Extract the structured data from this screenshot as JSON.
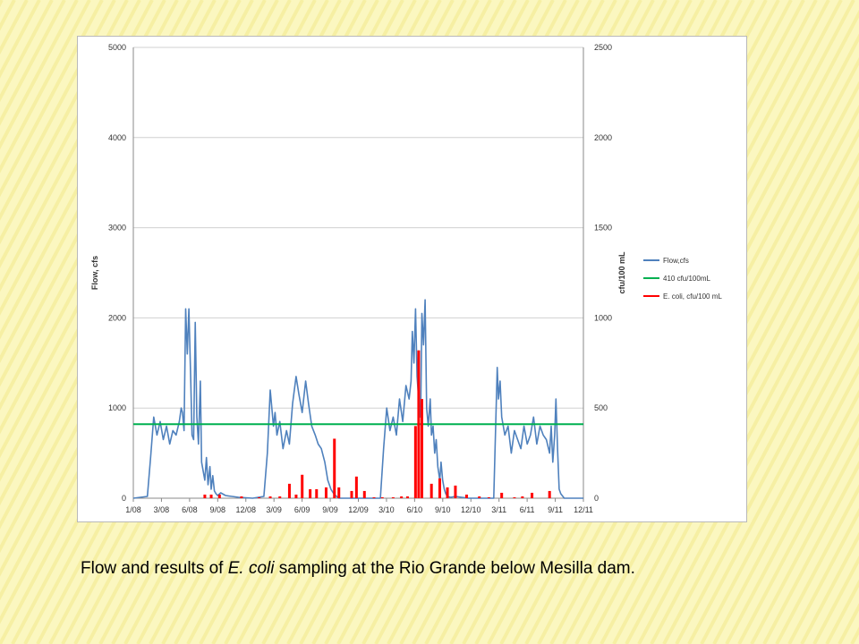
{
  "colors": {
    "background": "#fbf7c0",
    "stripe": "#f2e98c",
    "flow": "#4f81bd",
    "threshold": "#00b050",
    "ecoli": "#ff0000"
  },
  "caption": {
    "part1": "Flow and results of ",
    "italic": "E. coli",
    "part2": " sampling at the Rio Grande below Mesilla dam."
  },
  "chart_data": {
    "type": "line",
    "title": "",
    "xlabel": "",
    "ylabel": "Flow, cfs",
    "y2label": "cfu/100 mL",
    "ylim": [
      0,
      5000
    ],
    "y2lim": [
      0,
      2500
    ],
    "xlim": [
      "2008-01",
      "2011-12"
    ],
    "yticks": [
      "0",
      "1000",
      "2000",
      "3000",
      "4000",
      "5000"
    ],
    "y2ticks": [
      "0",
      "500",
      "1000",
      "1500",
      "2000",
      "2500"
    ],
    "xticks": [
      "1/08",
      "3/08",
      "6/08",
      "9/08",
      "12/08",
      "3/09",
      "6/09",
      "9/09",
      "12/09",
      "3/10",
      "6/10",
      "9/10",
      "12/10",
      "3/11",
      "6/11",
      "9/11",
      "12/11"
    ],
    "grid": "horizontal",
    "legend_position": "right",
    "series": [
      {
        "name": "Flow,cfs",
        "axis": "left",
        "style": "line",
        "x": [
          "2008-01-01",
          "2008-02-15",
          "2008-02-25",
          "2008-03-05",
          "2008-03-15",
          "2008-03-25",
          "2008-04-05",
          "2008-04-15",
          "2008-04-25",
          "2008-05-05",
          "2008-05-15",
          "2008-05-25",
          "2008-06-01",
          "2008-06-05",
          "2008-06-10",
          "2008-06-15",
          "2008-06-20",
          "2008-06-25",
          "2008-07-01",
          "2008-07-05",
          "2008-07-10",
          "2008-07-15",
          "2008-07-20",
          "2008-07-25",
          "2008-08-01",
          "2008-08-05",
          "2008-08-10",
          "2008-08-15",
          "2008-08-20",
          "2008-08-25",
          "2008-09-01",
          "2008-09-05",
          "2008-09-10",
          "2008-09-15",
          "2008-09-20",
          "2008-09-25",
          "2008-10-05",
          "2008-10-20",
          "2008-11-10",
          "2008-12-01",
          "2009-01-15",
          "2009-02-20",
          "2009-03-01",
          "2009-03-10",
          "2009-03-20",
          "2009-03-25",
          "2009-04-01",
          "2009-04-10",
          "2009-04-20",
          "2009-05-01",
          "2009-05-10",
          "2009-05-20",
          "2009-06-01",
          "2009-06-10",
          "2009-06-20",
          "2009-07-01",
          "2009-07-10",
          "2009-07-20",
          "2009-08-01",
          "2009-08-10",
          "2009-08-20",
          "2009-09-01",
          "2009-09-10",
          "2009-09-20",
          "2009-10-01",
          "2009-10-15",
          "2010-02-25",
          "2010-03-05",
          "2010-03-15",
          "2010-03-25",
          "2010-04-05",
          "2010-04-15",
          "2010-04-25",
          "2010-05-05",
          "2010-05-15",
          "2010-05-25",
          "2010-06-01",
          "2010-06-05",
          "2010-06-10",
          "2010-06-15",
          "2010-06-20",
          "2010-06-25",
          "2010-07-01",
          "2010-07-05",
          "2010-07-10",
          "2010-07-15",
          "2010-07-20",
          "2010-07-25",
          "2010-08-01",
          "2010-08-05",
          "2010-08-10",
          "2010-08-15",
          "2010-08-20",
          "2010-08-25",
          "2010-09-01",
          "2010-09-05",
          "2010-09-10",
          "2010-09-15",
          "2010-09-20",
          "2010-09-25",
          "2010-10-05",
          "2010-10-20",
          "2010-11-10",
          "2010-12-01",
          "2011-01-15",
          "2011-02-20",
          "2011-03-01",
          "2011-03-05",
          "2011-03-10",
          "2011-03-15",
          "2011-03-25",
          "2011-04-05",
          "2011-04-15",
          "2011-04-25",
          "2011-05-05",
          "2011-05-15",
          "2011-05-25",
          "2011-06-05",
          "2011-06-15",
          "2011-06-25",
          "2011-07-05",
          "2011-07-15",
          "2011-07-25",
          "2011-08-05",
          "2011-08-15",
          "2011-08-20",
          "2011-08-25",
          "2011-09-01",
          "2011-09-05",
          "2011-09-10",
          "2011-09-15",
          "2011-09-20",
          "2011-10-01",
          "2011-12-01"
        ],
        "y": [
          0,
          20,
          450,
          900,
          700,
          850,
          650,
          800,
          600,
          750,
          700,
          850,
          1000,
          950,
          750,
          2100,
          1600,
          2100,
          1300,
          700,
          650,
          1950,
          900,
          600,
          1300,
          400,
          300,
          200,
          450,
          150,
          350,
          100,
          250,
          80,
          50,
          30,
          60,
          30,
          20,
          10,
          0,
          20,
          500,
          1200,
          800,
          950,
          700,
          850,
          550,
          750,
          600,
          1050,
          1350,
          1150,
          950,
          1300,
          1050,
          800,
          700,
          600,
          550,
          400,
          200,
          100,
          40,
          0,
          0,
          550,
          1000,
          750,
          900,
          700,
          1100,
          850,
          1250,
          1100,
          1300,
          1850,
          1500,
          2100,
          1350,
          1100,
          900,
          2050,
          1700,
          2200,
          1000,
          800,
          1100,
          700,
          800,
          500,
          650,
          350,
          200,
          400,
          200,
          100,
          50,
          20,
          10,
          20,
          10,
          0,
          0,
          0,
          1450,
          1100,
          1300,
          900,
          700,
          800,
          500,
          750,
          650,
          550,
          800,
          600,
          700,
          900,
          600,
          800,
          700,
          650,
          500,
          800,
          400,
          700,
          1100,
          550,
          100,
          50,
          0,
          0
        ]
      },
      {
        "name": "410 cfu/100mL",
        "axis": "right",
        "style": "line",
        "x": [
          "2008-01-01",
          "2011-12-01"
        ],
        "y": [
          410,
          410
        ]
      },
      {
        "name": "E. coli, cfu/100 mL",
        "axis": "right",
        "style": "bar",
        "x": [
          "2008-08-15",
          "2008-09-05",
          "2008-10-01",
          "2008-12-10",
          "2009-02-05",
          "2009-03-10",
          "2009-04-10",
          "2009-05-10",
          "2009-06-01",
          "2009-06-20",
          "2009-07-15",
          "2009-08-05",
          "2009-09-05",
          "2009-10-01",
          "2009-10-15",
          "2009-11-25",
          "2009-12-10",
          "2010-01-05",
          "2010-02-05",
          "2010-03-01",
          "2010-04-05",
          "2010-05-01",
          "2010-05-20",
          "2010-06-15",
          "2010-06-25",
          "2010-07-05",
          "2010-08-05",
          "2010-09-01",
          "2010-09-25",
          "2010-10-20",
          "2010-11-25",
          "2011-01-05",
          "2011-02-05",
          "2011-03-15",
          "2011-04-25",
          "2011-05-20",
          "2011-06-20",
          "2011-08-15"
        ],
        "y": [
          20,
          20,
          20,
          10,
          5,
          10,
          10,
          80,
          20,
          130,
          50,
          50,
          60,
          330,
          60,
          40,
          120,
          40,
          5,
          5,
          5,
          10,
          10,
          400,
          820,
          550,
          80,
          110,
          60,
          70,
          20,
          10,
          5,
          30,
          5,
          10,
          30,
          40
        ]
      }
    ]
  }
}
